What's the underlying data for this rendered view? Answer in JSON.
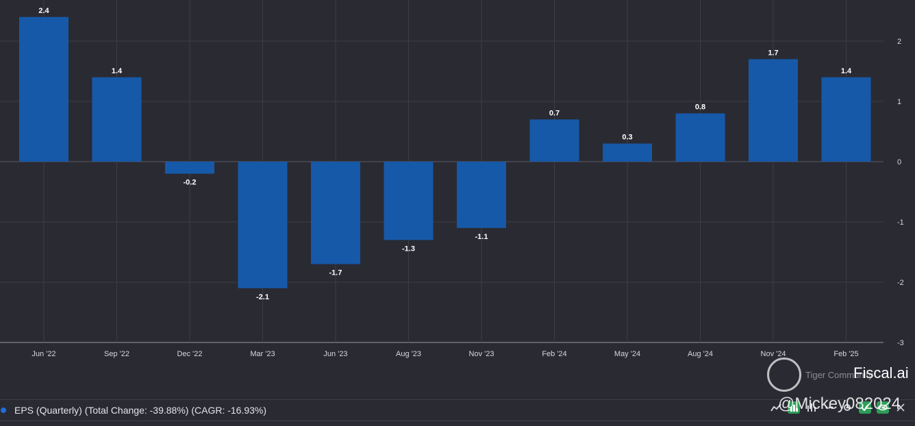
{
  "chart_data": {
    "type": "bar",
    "categories": [
      "Jun '22",
      "Sep '22",
      "Dec '22",
      "Mar '23",
      "Jun '23",
      "Aug '23",
      "Nov '23",
      "Feb '24",
      "May '24",
      "Aug '24",
      "Nov '24",
      "Feb '25"
    ],
    "values": [
      2.4,
      1.4,
      -0.2,
      -2.1,
      -1.7,
      -1.3,
      -1.1,
      0.7,
      0.3,
      0.8,
      1.7,
      1.4
    ],
    "ylim": [
      -3,
      2.6
    ],
    "yticks": [
      2,
      1,
      0,
      -1,
      -2,
      -3
    ],
    "series_name": "EPS (Quarterly) (Total Change: -39.88%) (CAGR: -16.93%)",
    "bar_color": "#1659a8",
    "grid": true,
    "legend_position": "bottom-left"
  },
  "watermark": {
    "community": "Tiger Community",
    "brand": "Fiscal.ai",
    "handle": "@Mickey082024"
  },
  "colors": {
    "background": "#2a2a33",
    "grid": "#3d3d47",
    "legend_dot": "#1e6fd9",
    "tool_active": "#2d9c58"
  },
  "toolbar": {
    "icons": [
      "line-chart-icon",
      "bar-chart-icon",
      "column-chart-icon",
      "ellipsis-icon",
      "settings-icon",
      "check-icon",
      "eye-icon",
      "close-icon"
    ]
  }
}
